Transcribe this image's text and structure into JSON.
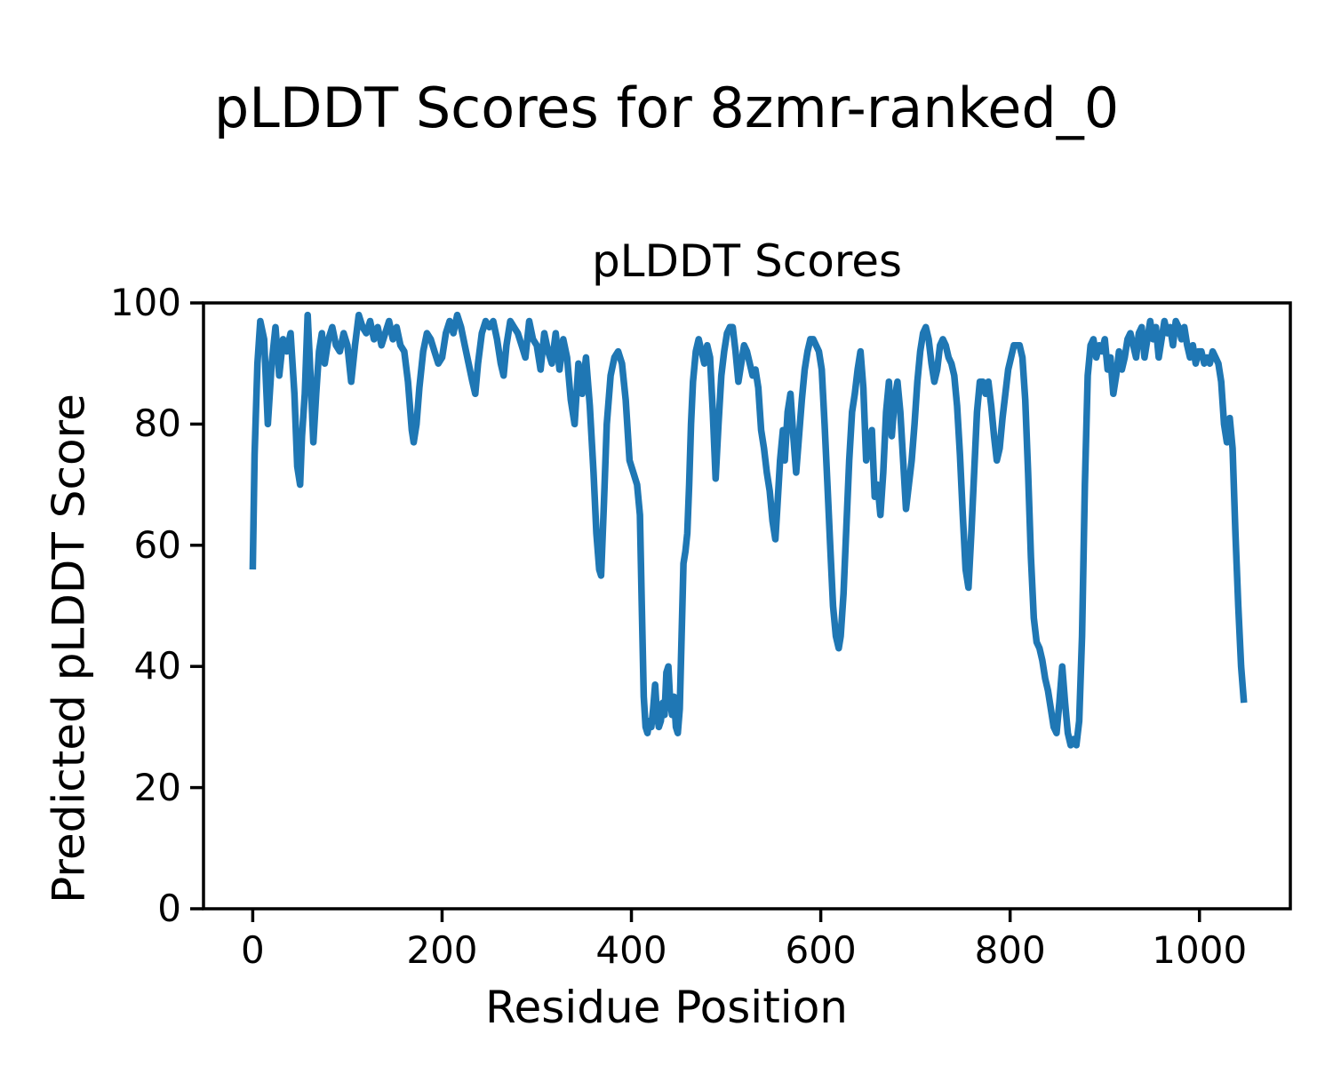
{
  "figure": {
    "suptitle": "pLDDT Scores for 8zmr-ranked_0",
    "background_color": "#ffffff",
    "text_color": "#000000"
  },
  "chart_data": {
    "type": "line",
    "title": "pLDDT Scores",
    "xlabel": "Residue Position",
    "ylabel": "Predicted pLDDT Score",
    "xlim": [
      -52,
      1096
    ],
    "ylim": [
      0,
      100
    ],
    "xticks": [
      0,
      200,
      400,
      600,
      800,
      1000
    ],
    "yticks": [
      0,
      20,
      40,
      60,
      80,
      100
    ],
    "grid": false,
    "legend": "none",
    "line_color": "#1f77b4",
    "line_width": 7.5,
    "axis_color": "#000000",
    "series": [
      {
        "name": "pLDDT",
        "x": [
          0,
          2,
          5,
          8,
          12,
          16,
          20,
          24,
          28,
          32,
          36,
          40,
          44,
          47,
          50,
          52,
          55,
          58,
          61,
          64,
          67,
          70,
          73,
          76,
          80,
          84,
          88,
          92,
          96,
          100,
          104,
          108,
          112,
          116,
          120,
          124,
          128,
          132,
          136,
          140,
          144,
          148,
          152,
          156,
          160,
          164,
          168,
          170,
          173,
          176,
          180,
          184,
          188,
          192,
          196,
          200,
          204,
          208,
          212,
          216,
          220,
          224,
          228,
          232,
          235,
          238,
          242,
          246,
          250,
          254,
          258,
          262,
          265,
          268,
          272,
          276,
          280,
          284,
          288,
          292,
          296,
          300,
          304,
          308,
          312,
          316,
          320,
          324,
          328,
          332,
          336,
          340,
          344,
          348,
          352,
          356,
          360,
          363,
          366,
          368,
          371,
          374,
          378,
          382,
          386,
          390,
          394,
          398,
          402,
          406,
          409,
          411,
          413,
          415,
          417,
          419,
          421,
          423,
          425,
          427,
          429,
          431,
          433,
          435,
          437,
          439,
          441,
          443,
          445,
          447,
          449,
          451,
          453,
          455,
          457,
          459,
          461,
          463,
          465,
          468,
          471,
          474,
          477,
          480,
          483,
          486,
          489,
          492,
          495,
          498,
          501,
          504,
          507,
          510,
          513,
          516,
          519,
          522,
          525,
          528,
          531,
          534,
          537,
          540,
          543,
          546,
          549,
          552,
          554,
          557,
          560,
          562,
          565,
          568,
          571,
          574,
          577,
          580,
          583,
          586,
          589,
          592,
          595,
          598,
          601,
          604,
          607,
          610,
          613,
          616,
          619,
          621,
          624,
          627,
          630,
          633,
          636,
          639,
          642,
          645,
          648,
          651,
          654,
          657,
          660,
          663,
          666,
          669,
          672,
          675,
          678,
          681,
          684,
          687,
          690,
          693,
          696,
          699,
          702,
          705,
          708,
          711,
          714,
          717,
          720,
          723,
          726,
          729,
          732,
          735,
          738,
          741,
          744,
          747,
          750,
          753,
          756,
          759,
          762,
          765,
          768,
          771,
          774,
          777,
          780,
          783,
          786,
          789,
          792,
          795,
          798,
          801,
          804,
          807,
          810,
          813,
          816,
          819,
          822,
          825,
          828,
          831,
          834,
          837,
          840,
          843,
          846,
          849,
          852,
          855,
          858,
          861,
          864,
          867,
          870,
          873,
          876,
          879,
          882,
          885,
          888,
          891,
          894,
          897,
          900,
          903,
          906,
          909,
          912,
          915,
          918,
          921,
          924,
          927,
          930,
          933,
          936,
          939,
          942,
          945,
          948,
          951,
          954,
          957,
          960,
          963,
          966,
          969,
          972,
          975,
          978,
          981,
          984,
          987,
          990,
          993,
          996,
          999,
          1002,
          1005,
          1008,
          1011,
          1014,
          1017,
          1020,
          1023,
          1026,
          1029,
          1032,
          1035,
          1038,
          1041,
          1044,
          1047
        ],
        "y": [
          56,
          75,
          90,
          97,
          94,
          80,
          90,
          96,
          88,
          94,
          92,
          95,
          85,
          73,
          70,
          78,
          85,
          98,
          88,
          77,
          85,
          92,
          95,
          90,
          94,
          96,
          93,
          92,
          95,
          93,
          87,
          93,
          98,
          96,
          95,
          97,
          94,
          96,
          93,
          95,
          97,
          94,
          96,
          93,
          92,
          87,
          79,
          77,
          80,
          86,
          92,
          95,
          94,
          92,
          90,
          91,
          95,
          97,
          95,
          98,
          96,
          93,
          90,
          87,
          85,
          90,
          95,
          97,
          96,
          97,
          94,
          90,
          88,
          93,
          97,
          96,
          95,
          93,
          91,
          97,
          94,
          93,
          89,
          95,
          92,
          90,
          95,
          89,
          94,
          91,
          84,
          80,
          90,
          85,
          91,
          83,
          72,
          62,
          56,
          55,
          67,
          80,
          88,
          91,
          92,
          90,
          84,
          74,
          72,
          70,
          65,
          50,
          35,
          30,
          29,
          31,
          30,
          33,
          37,
          32,
          30,
          31,
          34,
          32,
          39,
          40,
          34,
          32,
          35,
          30,
          29,
          33,
          45,
          57,
          59,
          62,
          70,
          80,
          87,
          92,
          94,
          92,
          90,
          93,
          91,
          82,
          71,
          80,
          88,
          92,
          95,
          96,
          96,
          92,
          87,
          90,
          93,
          92,
          90,
          88,
          89,
          86,
          79,
          76,
          72,
          69,
          64,
          61,
          66,
          74,
          79,
          74,
          82,
          85,
          78,
          72,
          78,
          84,
          89,
          92,
          94,
          94,
          93,
          92,
          89,
          80,
          70,
          60,
          50,
          45,
          43,
          45,
          52,
          63,
          74,
          82,
          85,
          89,
          92,
          86,
          74,
          77,
          79,
          68,
          70,
          65,
          72,
          82,
          87,
          78,
          84,
          87,
          82,
          74,
          66,
          70,
          74,
          80,
          87,
          92,
          95,
          96,
          94,
          90,
          87,
          89,
          93,
          94,
          93,
          91,
          90,
          88,
          83,
          75,
          65,
          56,
          53,
          62,
          72,
          82,
          87,
          87,
          85,
          87,
          83,
          78,
          74,
          76,
          81,
          85,
          89,
          91,
          93,
          93,
          93,
          91,
          84,
          72,
          58,
          48,
          44,
          43,
          41,
          38,
          36,
          33,
          30,
          29,
          34,
          40,
          34,
          29,
          27,
          28,
          27,
          31,
          45,
          70,
          88,
          93,
          94,
          91,
          93,
          92,
          94,
          89,
          91,
          85,
          88,
          92,
          89,
          91,
          94,
          95,
          93,
          91,
          95,
          96,
          91,
          94,
          97,
          94,
          96,
          91,
          94,
          97,
          95,
          96,
          93,
          97,
          96,
          94,
          96,
          93,
          91,
          93,
          90,
          92,
          92,
          90,
          91,
          90,
          92,
          91,
          90,
          87,
          80,
          77,
          81,
          76,
          62,
          50,
          40,
          34
        ]
      }
    ]
  }
}
